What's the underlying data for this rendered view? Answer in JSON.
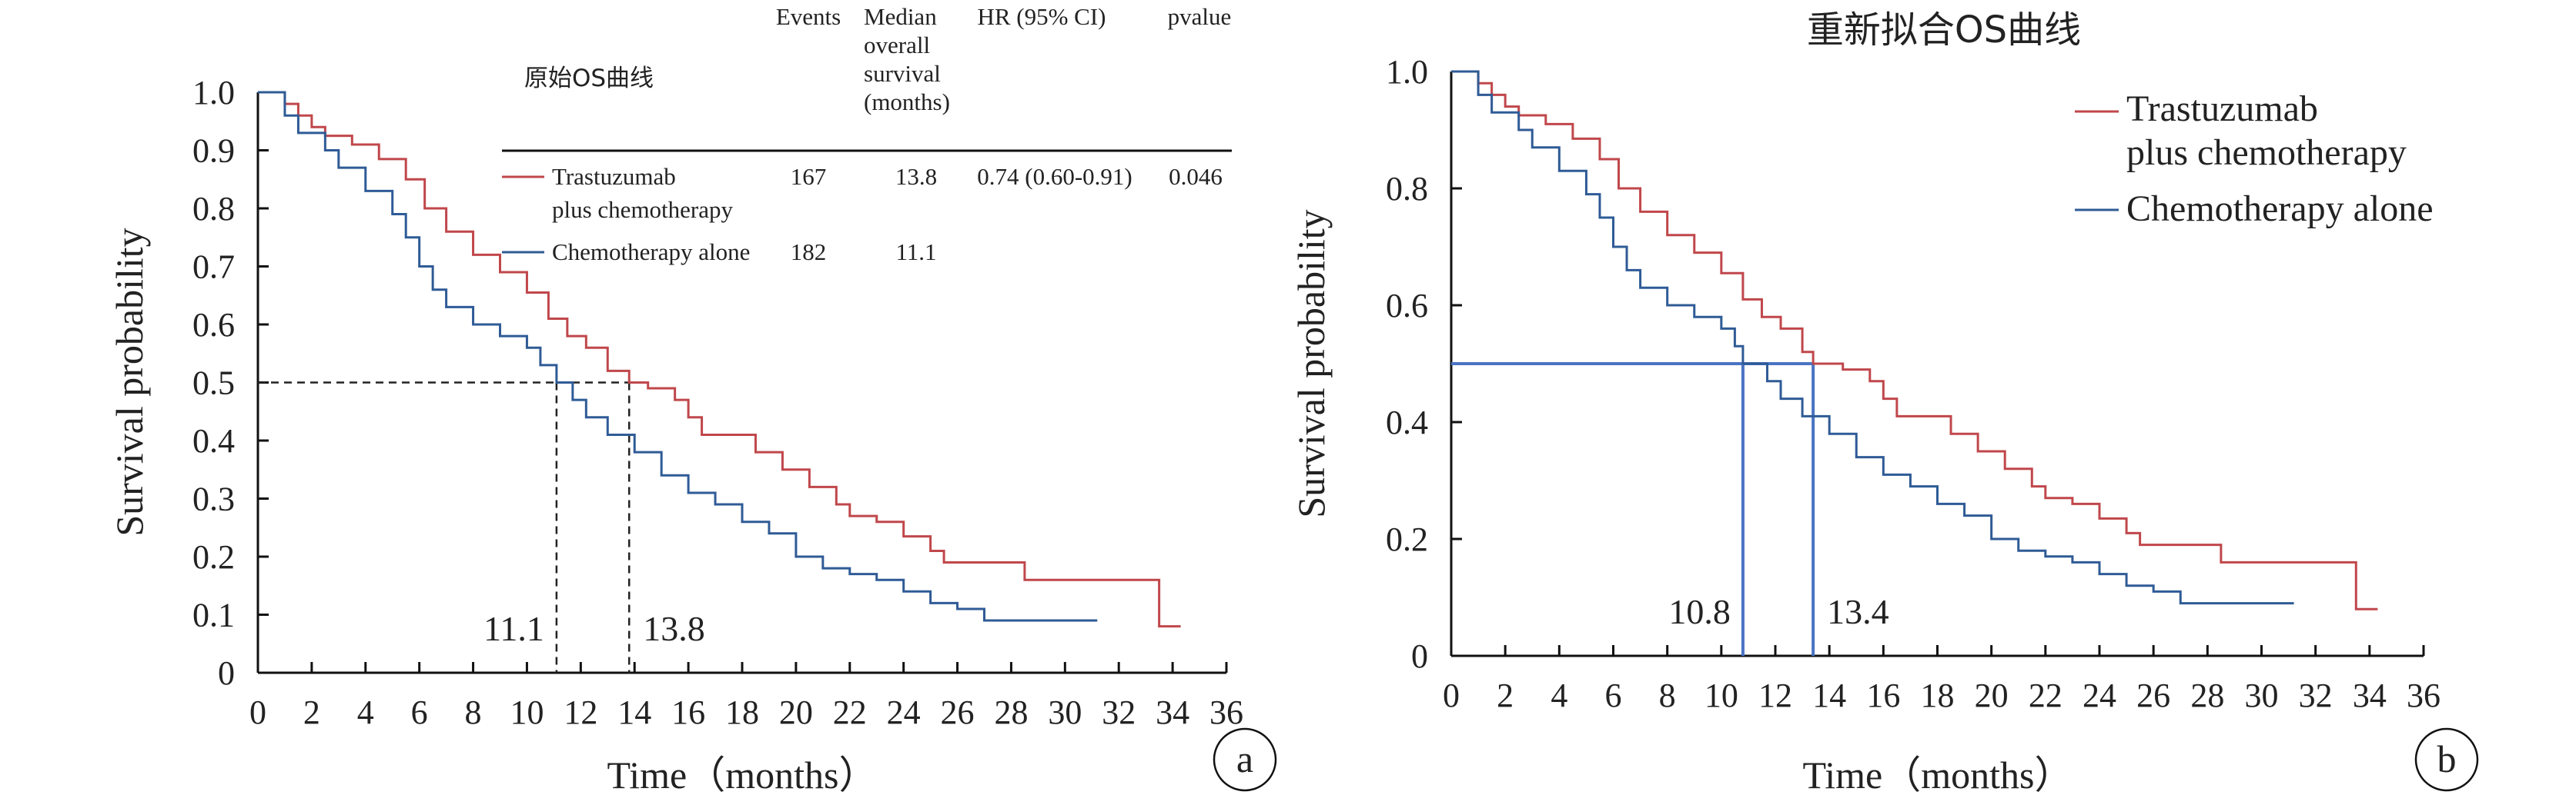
{
  "chart_data": [
    {
      "panel_letter": "a",
      "type": "line",
      "title": "原始OS曲线",
      "xlabel": "Time（months）",
      "ylabel": "Survival probability",
      "xlim": [
        0,
        36
      ],
      "ylim": [
        0,
        1.0
      ],
      "x_ticks": [
        "0",
        "2",
        "4",
        "6",
        "8",
        "10",
        "12",
        "14",
        "16",
        "18",
        "20",
        "22",
        "24",
        "26",
        "28",
        "30",
        "32",
        "34",
        "36"
      ],
      "y_ticks": [
        "0",
        "0.1",
        "0.2",
        "0.3",
        "0.4",
        "0.5",
        "0.6",
        "0.7",
        "0.8",
        "0.9",
        "1.0"
      ],
      "grid": false,
      "table": {
        "headers": [
          "Events",
          "Median overall survival (months)",
          "HR (95% CI)",
          "pvalue"
        ],
        "rows": [
          {
            "label": "Trastuzumab plus chemotherapy",
            "events": "167",
            "median": "13.8",
            "hr": "0.74 (0.60-0.91)",
            "pvalue": "0.046"
          },
          {
            "label": "Chemotherapy alone",
            "events": "182",
            "median": "11.1",
            "hr": "",
            "pvalue": ""
          }
        ]
      },
      "medians": [
        {
          "label": "11.1",
          "x": 11.1,
          "y": 0.5
        },
        {
          "label": "13.8",
          "x": 13.8,
          "y": 0.5
        }
      ],
      "series": [
        {
          "name": "Trastuzumab plus chemotherapy",
          "color": "#c0474b",
          "points": [
            [
              0,
              1.0
            ],
            [
              0.7,
              1.0
            ],
            [
              1,
              0.98
            ],
            [
              1.5,
              0.96
            ],
            [
              2,
              0.94
            ],
            [
              2.5,
              0.925
            ],
            [
              3.5,
              0.91
            ],
            [
              4.5,
              0.885
            ],
            [
              5.5,
              0.85
            ],
            [
              6.2,
              0.8
            ],
            [
              7,
              0.76
            ],
            [
              8,
              0.72
            ],
            [
              9,
              0.69
            ],
            [
              10,
              0.655
            ],
            [
              10.8,
              0.61
            ],
            [
              11.5,
              0.58
            ],
            [
              12.2,
              0.56
            ],
            [
              13,
              0.52
            ],
            [
              13.8,
              0.5
            ],
            [
              14.5,
              0.49
            ],
            [
              15.5,
              0.47
            ],
            [
              16,
              0.44
            ],
            [
              16.5,
              0.41
            ],
            [
              18,
              0.41
            ],
            [
              18.5,
              0.38
            ],
            [
              19.5,
              0.35
            ],
            [
              20.5,
              0.32
            ],
            [
              21.5,
              0.29
            ],
            [
              22,
              0.27
            ],
            [
              23,
              0.26
            ],
            [
              24,
              0.235
            ],
            [
              25,
              0.21
            ],
            [
              25.5,
              0.19
            ],
            [
              27.5,
              0.19
            ],
            [
              28.5,
              0.16
            ],
            [
              33.3,
              0.16
            ],
            [
              33.5,
              0.08
            ],
            [
              34.3,
              0.08
            ]
          ]
        },
        {
          "name": "Chemotherapy alone",
          "color": "#2f5b96",
          "points": [
            [
              0,
              1.0
            ],
            [
              0.7,
              1.0
            ],
            [
              1,
              0.96
            ],
            [
              1.5,
              0.93
            ],
            [
              2.5,
              0.9
            ],
            [
              3,
              0.87
            ],
            [
              4,
              0.83
            ],
            [
              5,
              0.79
            ],
            [
              5.5,
              0.75
            ],
            [
              6,
              0.7
            ],
            [
              6.5,
              0.66
            ],
            [
              7,
              0.63
            ],
            [
              8,
              0.6
            ],
            [
              9,
              0.58
            ],
            [
              10,
              0.56
            ],
            [
              10.5,
              0.53
            ],
            [
              11.1,
              0.5
            ],
            [
              11.7,
              0.47
            ],
            [
              12.2,
              0.44
            ],
            [
              13,
              0.41
            ],
            [
              14,
              0.38
            ],
            [
              15,
              0.34
            ],
            [
              16,
              0.31
            ],
            [
              17,
              0.29
            ],
            [
              18,
              0.26
            ],
            [
              19,
              0.24
            ],
            [
              20,
              0.2
            ],
            [
              21,
              0.18
            ],
            [
              22,
              0.17
            ],
            [
              23,
              0.16
            ],
            [
              24,
              0.14
            ],
            [
              25,
              0.12
            ],
            [
              26,
              0.11
            ],
            [
              27,
              0.09
            ],
            [
              31.2,
              0.09
            ]
          ]
        }
      ]
    },
    {
      "panel_letter": "b",
      "type": "line",
      "title": "重新拟合OS曲线",
      "xlabel": "Time（months）",
      "ylabel": "Survival probability",
      "xlim": [
        0,
        36
      ],
      "ylim": [
        0,
        1.0
      ],
      "x_ticks": [
        "0",
        "2",
        "4",
        "6",
        "8",
        "10",
        "12",
        "14",
        "16",
        "18",
        "20",
        "22",
        "24",
        "26",
        "28",
        "30",
        "32",
        "34",
        "36"
      ],
      "y_ticks": [
        "0",
        "0.2",
        "0.4",
        "0.6",
        "0.8",
        "1.0"
      ],
      "grid": false,
      "legend": "top-right",
      "medians": [
        {
          "label": "10.8",
          "x": 10.8,
          "y": 0.5
        },
        {
          "label": "13.4",
          "x": 13.4,
          "y": 0.5
        }
      ],
      "series": [
        {
          "name": "Trastuzumab plus chemotherapy",
          "color": "#c0474b",
          "points": [
            [
              0,
              1.0
            ],
            [
              0.7,
              1.0
            ],
            [
              1,
              0.98
            ],
            [
              1.5,
              0.96
            ],
            [
              2,
              0.94
            ],
            [
              2.5,
              0.925
            ],
            [
              3.5,
              0.91
            ],
            [
              4.5,
              0.885
            ],
            [
              5.5,
              0.85
            ],
            [
              6.2,
              0.8
            ],
            [
              7,
              0.76
            ],
            [
              8,
              0.72
            ],
            [
              9,
              0.69
            ],
            [
              10,
              0.655
            ],
            [
              10.8,
              0.61
            ],
            [
              11.5,
              0.58
            ],
            [
              12.2,
              0.56
            ],
            [
              13,
              0.52
            ],
            [
              13.4,
              0.5
            ],
            [
              14.5,
              0.49
            ],
            [
              15.5,
              0.47
            ],
            [
              16,
              0.44
            ],
            [
              16.5,
              0.41
            ],
            [
              18,
              0.41
            ],
            [
              18.5,
              0.38
            ],
            [
              19.5,
              0.35
            ],
            [
              20.5,
              0.32
            ],
            [
              21.5,
              0.29
            ],
            [
              22,
              0.27
            ],
            [
              23,
              0.26
            ],
            [
              24,
              0.235
            ],
            [
              25,
              0.21
            ],
            [
              25.5,
              0.19
            ],
            [
              27.5,
              0.19
            ],
            [
              28.5,
              0.16
            ],
            [
              33.3,
              0.16
            ],
            [
              33.5,
              0.08
            ],
            [
              34.3,
              0.08
            ]
          ]
        },
        {
          "name": "Chemotherapy alone",
          "color": "#2f5b96",
          "points": [
            [
              0,
              1.0
            ],
            [
              0.7,
              1.0
            ],
            [
              1,
              0.96
            ],
            [
              1.5,
              0.93
            ],
            [
              2.5,
              0.9
            ],
            [
              3,
              0.87
            ],
            [
              4,
              0.83
            ],
            [
              5,
              0.79
            ],
            [
              5.5,
              0.75
            ],
            [
              6,
              0.7
            ],
            [
              6.5,
              0.66
            ],
            [
              7,
              0.63
            ],
            [
              8,
              0.6
            ],
            [
              9,
              0.58
            ],
            [
              10,
              0.56
            ],
            [
              10.5,
              0.53
            ],
            [
              10.8,
              0.5
            ],
            [
              11.7,
              0.47
            ],
            [
              12.2,
              0.44
            ],
            [
              13,
              0.41
            ],
            [
              14,
              0.38
            ],
            [
              15,
              0.34
            ],
            [
              16,
              0.31
            ],
            [
              17,
              0.29
            ],
            [
              18,
              0.26
            ],
            [
              19,
              0.24
            ],
            [
              20,
              0.2
            ],
            [
              21,
              0.18
            ],
            [
              22,
              0.17
            ],
            [
              23,
              0.16
            ],
            [
              24,
              0.14
            ],
            [
              25,
              0.12
            ],
            [
              26,
              0.11
            ],
            [
              27,
              0.09
            ],
            [
              31.2,
              0.09
            ]
          ]
        }
      ]
    }
  ],
  "colors": {
    "axis": "#111111",
    "ref_dashed": "#222222",
    "ref_solid": "#4a74c4"
  }
}
